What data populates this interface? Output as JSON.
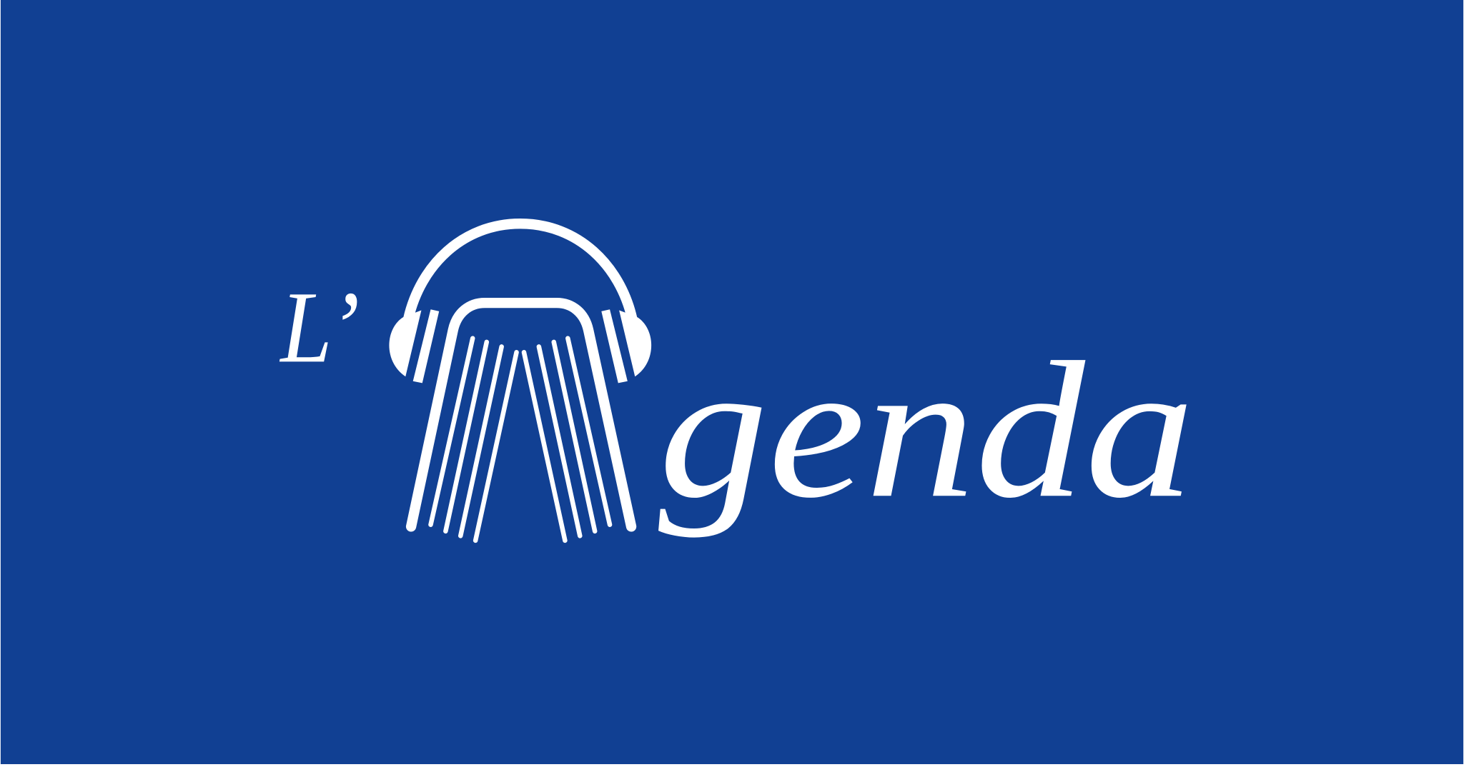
{
  "logo": {
    "prefix": "L’",
    "suffix": "genda"
  }
}
